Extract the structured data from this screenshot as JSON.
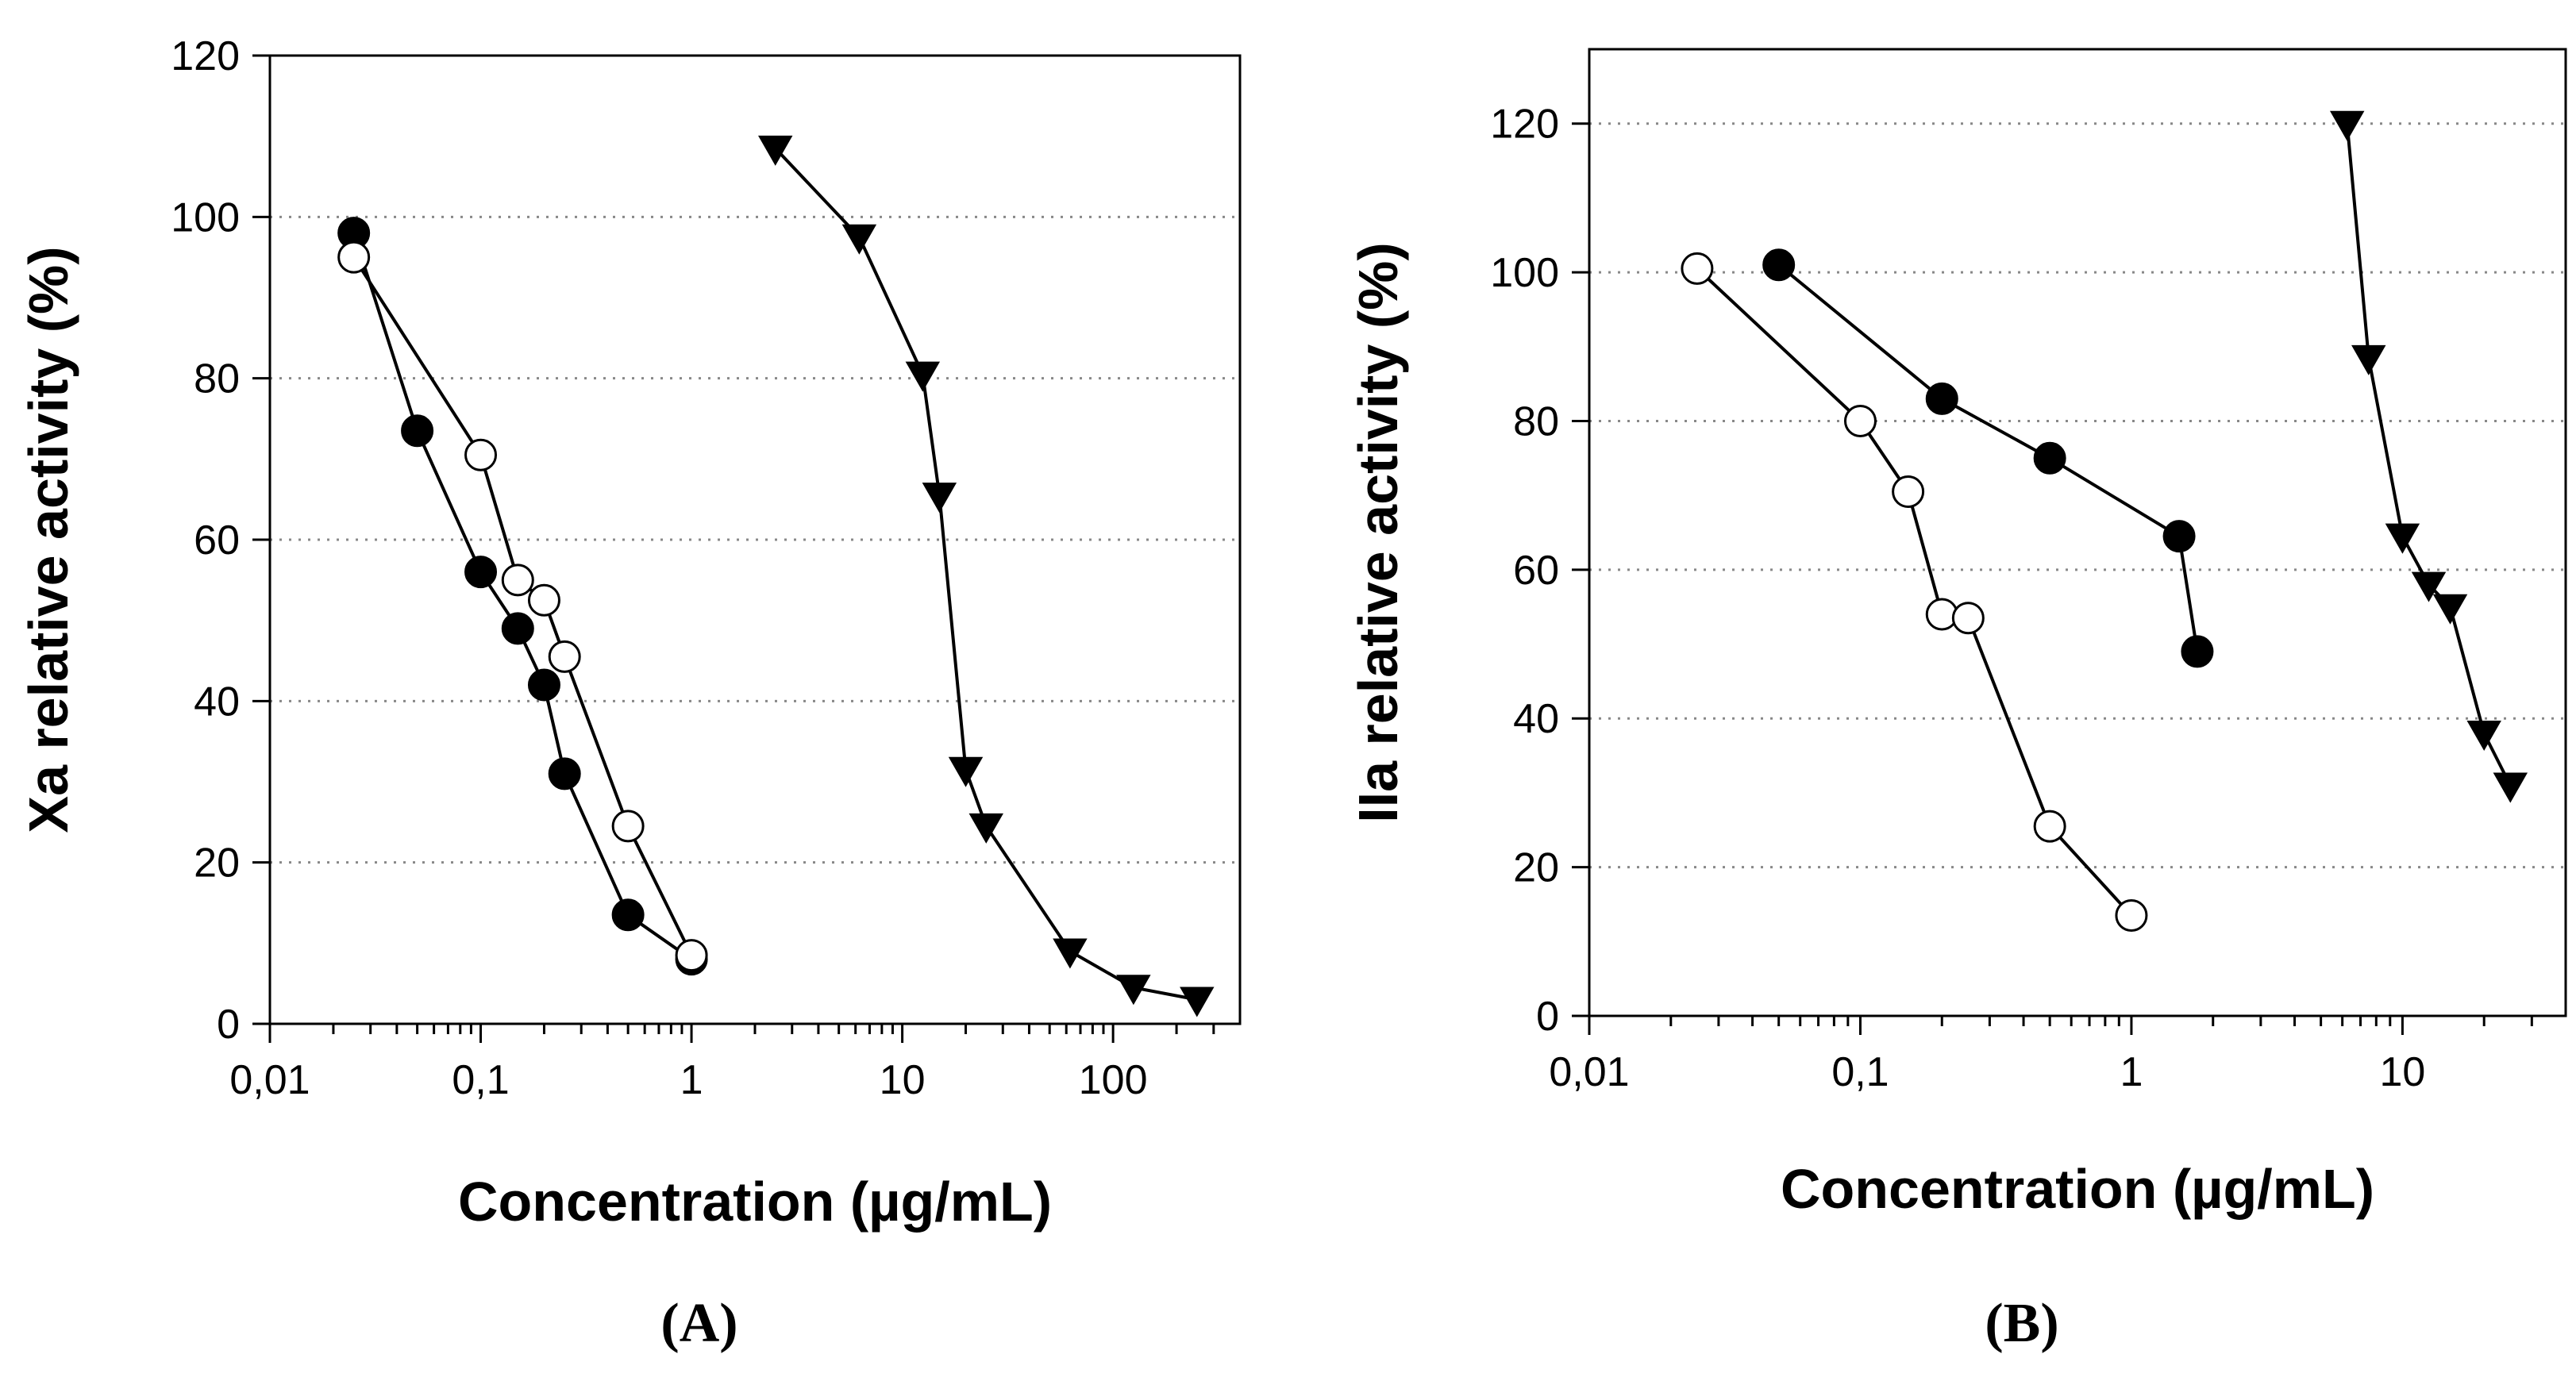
{
  "chart_data": [
    {
      "type": "scatter",
      "panel_label": "(A)",
      "xlabel": "Concentration (µg/mL)",
      "ylabel": "Xa relative activity (%)",
      "x_scale": "log",
      "xlim": [
        0.01,
        400
      ],
      "ylim": [
        0,
        120
      ],
      "x_ticks": [
        0.01,
        0.1,
        1,
        10,
        100
      ],
      "x_tick_labels": [
        "0,01",
        "0,1",
        "1",
        "10",
        "100"
      ],
      "y_ticks": [
        0,
        20,
        40,
        60,
        80,
        100,
        120
      ],
      "y_tick_labels": [
        "0",
        "20",
        "40",
        "60",
        "80",
        "100",
        "120"
      ],
      "grid": "horizontal dotted",
      "series": [
        {
          "marker": "filled-circle",
          "color": "#000000",
          "points": [
            [
              0.025,
              98
            ],
            [
              0.05,
              73.5
            ],
            [
              0.1,
              56
            ],
            [
              0.15,
              49
            ],
            [
              0.2,
              42
            ],
            [
              0.25,
              31
            ],
            [
              0.5,
              13.5
            ],
            [
              1,
              8
            ]
          ]
        },
        {
          "marker": "open-circle",
          "color": "#000000",
          "points": [
            [
              0.025,
              95
            ],
            [
              0.1,
              70.5
            ],
            [
              0.15,
              55
            ],
            [
              0.2,
              52.5
            ],
            [
              0.25,
              45.5
            ],
            [
              0.5,
              24.5
            ],
            [
              1,
              8.5
            ]
          ]
        },
        {
          "marker": "filled-triangle-down",
          "color": "#000000",
          "points": [
            [
              2.5,
              108.5
            ],
            [
              6.25,
              97.5
            ],
            [
              12.5,
              80.5
            ],
            [
              15,
              65.5
            ],
            [
              20,
              31.5
            ],
            [
              25,
              24.5
            ],
            [
              62.5,
              9
            ],
            [
              125,
              4.5
            ],
            [
              250,
              3
            ]
          ]
        }
      ]
    },
    {
      "type": "scatter",
      "panel_label": "(B)",
      "xlabel": "Concentration (µg/mL)",
      "ylabel": "IIa relative activity (%)",
      "x_scale": "log",
      "xlim": [
        0.01,
        40
      ],
      "ylim": [
        0,
        130
      ],
      "x_ticks": [
        0.01,
        0.1,
        1,
        10
      ],
      "x_tick_labels": [
        "0,01",
        "0,1",
        "1",
        "10"
      ],
      "y_ticks": [
        0,
        20,
        40,
        60,
        80,
        100,
        120
      ],
      "y_tick_labels": [
        "0",
        "20",
        "40",
        "60",
        "80",
        "100",
        "120"
      ],
      "grid": "horizontal dotted",
      "series": [
        {
          "marker": "filled-circle",
          "color": "#000000",
          "points": [
            [
              0.05,
              101
            ],
            [
              0.2,
              83
            ],
            [
              0.5,
              75
            ],
            [
              1.5,
              64.5
            ],
            [
              1.75,
              49
            ]
          ]
        },
        {
          "marker": "open-circle",
          "color": "#000000",
          "points": [
            [
              0.025,
              100.5
            ],
            [
              0.1,
              80
            ],
            [
              0.15,
              70.5
            ],
            [
              0.2,
              54
            ],
            [
              0.25,
              53.5
            ],
            [
              0.5,
              25.5
            ],
            [
              1,
              13.5
            ]
          ]
        },
        {
          "marker": "filled-triangle-down",
          "color": "#000000",
          "points": [
            [
              6.25,
              120
            ],
            [
              7.5,
              88.5
            ],
            [
              10,
              64.5
            ],
            [
              12.5,
              58
            ],
            [
              15,
              55
            ],
            [
              20,
              38
            ],
            [
              25,
              31
            ]
          ]
        }
      ]
    }
  ]
}
